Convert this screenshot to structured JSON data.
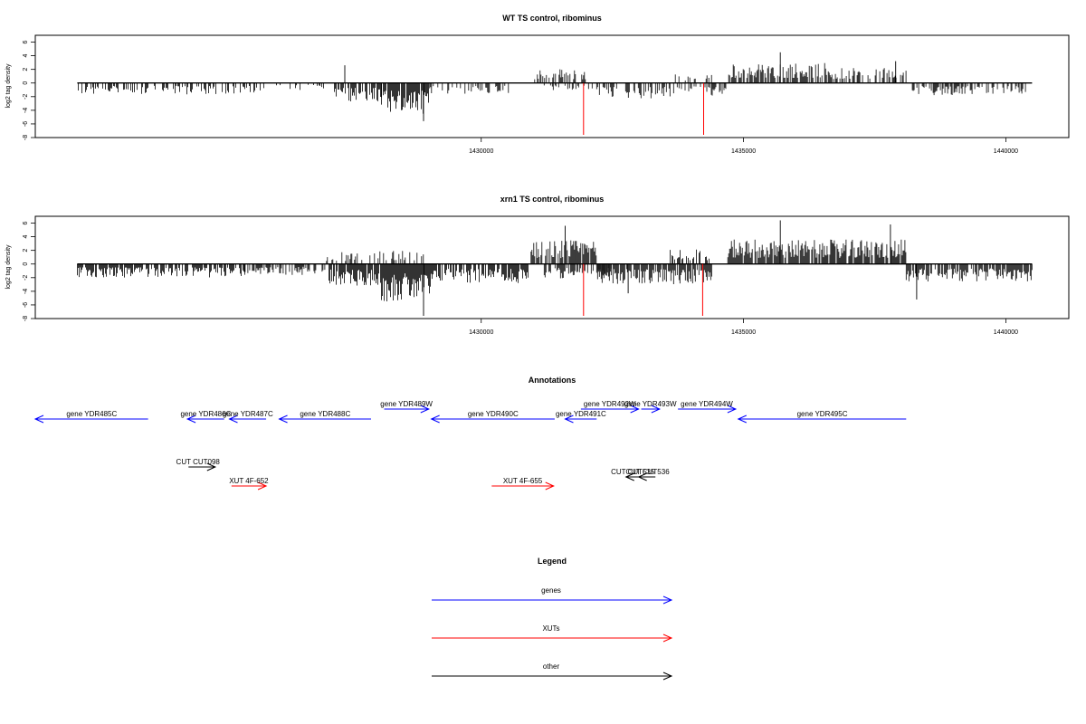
{
  "colors": {
    "gene": "#0000ff",
    "xut": "#ff0000",
    "other": "#000000",
    "bars": "#000000",
    "highlight": "#ff0000"
  },
  "chart_data": [
    {
      "type": "bar",
      "title": "WT TS control, ribominus",
      "ylabel": "log2 tag density",
      "ylim": [
        -8,
        7
      ],
      "yticks": [
        6,
        4,
        2,
        0,
        -2,
        -4,
        -6,
        -8
      ],
      "xlim": [
        1421500,
        1441200
      ],
      "xticks": [
        1430000,
        1435000,
        1440000
      ],
      "xtick_labels": [
        "1430000",
        "1435000",
        "1440000"
      ],
      "grid": false,
      "segments": [
        {
          "from": 1422300,
          "to": 1425700,
          "sign": -1,
          "amp": 1.7,
          "density": 0.45
        },
        {
          "from": 1425700,
          "to": 1427000,
          "sign": -1,
          "amp": 1.1,
          "density": 0.2
        },
        {
          "from": 1427200,
          "to": 1428100,
          "sign": -1,
          "amp": 2.8,
          "density": 0.7
        },
        {
          "from": 1428100,
          "to": 1429000,
          "sign": -1,
          "amp": 4.5,
          "density": 0.9
        },
        {
          "from": 1429000,
          "to": 1430600,
          "sign": -1,
          "amp": 1.6,
          "density": 0.45
        },
        {
          "from": 1430950,
          "to": 1432000,
          "sign": 1,
          "amp": 2.2,
          "density": 0.35
        },
        {
          "from": 1431200,
          "to": 1432200,
          "sign": -1,
          "amp": 1.3,
          "density": 0.3
        },
        {
          "from": 1432200,
          "to": 1433800,
          "sign": -1,
          "amp": 2.3,
          "density": 0.5
        },
        {
          "from": 1433800,
          "to": 1434700,
          "sign": -1,
          "amp": 2.0,
          "density": 0.5
        },
        {
          "from": 1433700,
          "to": 1434400,
          "sign": 1,
          "amp": 1.3,
          "density": 0.3
        },
        {
          "from": 1434700,
          "to": 1436700,
          "sign": 1,
          "amp": 3.0,
          "density": 0.75
        },
        {
          "from": 1436700,
          "to": 1438200,
          "sign": 1,
          "amp": 2.2,
          "density": 0.55
        },
        {
          "from": 1438200,
          "to": 1440400,
          "sign": -1,
          "amp": 1.8,
          "density": 0.45
        }
      ],
      "spikes": [
        {
          "x": 1427400,
          "y": 2.6
        },
        {
          "x": 1428900,
          "y": -5.6
        },
        {
          "x": 1435700,
          "y": 4.5
        },
        {
          "x": 1437900,
          "y": 3.2
        }
      ],
      "highlights": [
        {
          "x": 1431950,
          "y": -7.6
        },
        {
          "x": 1434240,
          "y": -7.6
        }
      ]
    },
    {
      "type": "bar",
      "title": "xrn1 TS control, ribominus",
      "ylabel": "log2 tag density",
      "ylim": [
        -8,
        7
      ],
      "yticks": [
        6,
        4,
        2,
        0,
        -2,
        -4,
        -6,
        -8
      ],
      "xlim": [
        1421500,
        1441200
      ],
      "xticks": [
        1430000,
        1435000,
        1440000
      ],
      "xtick_labels": [
        "1430000",
        "1435000",
        "1440000"
      ],
      "grid": false,
      "segments": [
        {
          "from": 1422300,
          "to": 1425500,
          "sign": -1,
          "amp": 2.0,
          "density": 0.75
        },
        {
          "from": 1425500,
          "to": 1427100,
          "sign": -1,
          "amp": 1.6,
          "density": 0.55
        },
        {
          "from": 1427000,
          "to": 1428000,
          "sign": 1,
          "amp": 1.8,
          "density": 0.3
        },
        {
          "from": 1427100,
          "to": 1428100,
          "sign": -1,
          "amp": 3.2,
          "density": 0.85
        },
        {
          "from": 1428000,
          "to": 1428900,
          "sign": 1,
          "amp": 2.0,
          "density": 0.35
        },
        {
          "from": 1428100,
          "to": 1429100,
          "sign": -1,
          "amp": 5.5,
          "density": 1.0
        },
        {
          "from": 1429100,
          "to": 1430900,
          "sign": -1,
          "amp": 2.8,
          "density": 0.8
        },
        {
          "from": 1430950,
          "to": 1432200,
          "sign": 1,
          "amp": 3.5,
          "density": 0.85
        },
        {
          "from": 1431200,
          "to": 1432500,
          "sign": -1,
          "amp": 2.2,
          "density": 0.55
        },
        {
          "from": 1432200,
          "to": 1434400,
          "sign": -1,
          "amp": 3.0,
          "density": 0.85
        },
        {
          "from": 1433600,
          "to": 1434400,
          "sign": 1,
          "amp": 2.2,
          "density": 0.45
        },
        {
          "from": 1434700,
          "to": 1436300,
          "sign": 1,
          "amp": 3.6,
          "density": 0.9
        },
        {
          "from": 1436300,
          "to": 1438100,
          "sign": 1,
          "amp": 3.6,
          "density": 0.85
        },
        {
          "from": 1438100,
          "to": 1440500,
          "sign": -1,
          "amp": 2.6,
          "density": 0.8
        }
      ],
      "spikes": [
        {
          "x": 1428900,
          "y": -7.6
        },
        {
          "x": 1431600,
          "y": 5.6
        },
        {
          "x": 1435700,
          "y": 6.4
        },
        {
          "x": 1437800,
          "y": 5.8
        },
        {
          "x": 1432800,
          "y": -4.3
        },
        {
          "x": 1438300,
          "y": -5.2
        }
      ],
      "highlights": [
        {
          "x": 1431950,
          "y": -7.6
        },
        {
          "x": 1434220,
          "y": -7.6
        }
      ]
    }
  ],
  "annotations": {
    "title": "Annotations",
    "features": [
      {
        "label": "gene YDR485C",
        "kind": "gene",
        "start": 1421400,
        "end": 1423650,
        "strand": "-",
        "row": 2
      },
      {
        "label": "gene YDR486C",
        "kind": "gene",
        "start": 1424400,
        "end": 1425100,
        "strand": "-",
        "row": 2
      },
      {
        "label": "gene YDR487C",
        "kind": "gene",
        "start": 1425200,
        "end": 1425900,
        "strand": "-",
        "row": 2
      },
      {
        "label": "gene YDR488C",
        "kind": "gene",
        "start": 1426150,
        "end": 1427900,
        "strand": "-",
        "row": 2
      },
      {
        "label": "gene YDR489W",
        "kind": "gene",
        "start": 1428150,
        "end": 1429000,
        "strand": "+",
        "row": 1
      },
      {
        "label": "gene YDR490C",
        "kind": "gene",
        "start": 1429050,
        "end": 1431400,
        "strand": "-",
        "row": 2
      },
      {
        "label": "gene YDR491C",
        "kind": "gene",
        "start": 1431600,
        "end": 1432200,
        "strand": "-",
        "row": 2
      },
      {
        "label": "gene YDR492W",
        "kind": "gene",
        "start": 1431900,
        "end": 1433000,
        "strand": "+",
        "row": 1
      },
      {
        "label": "gene YDR493W",
        "kind": "gene",
        "start": 1433050,
        "end": 1433400,
        "strand": "+",
        "row": 1
      },
      {
        "label": "gene YDR494W",
        "kind": "gene",
        "start": 1433750,
        "end": 1434850,
        "strand": "+",
        "row": 1
      },
      {
        "label": "gene YDR495C",
        "kind": "gene",
        "start": 1434900,
        "end": 1438100,
        "strand": "-",
        "row": 2
      },
      {
        "label": "CUT CUT098",
        "kind": "other",
        "start": 1424420,
        "end": 1424930,
        "strand": "+",
        "row": 3,
        "text_anchor": 1424600
      },
      {
        "label": "CUT CUT535",
        "kind": "other",
        "start": 1432760,
        "end": 1433050,
        "strand": "-",
        "row": 4,
        "text_anchor": 1432890
      },
      {
        "label": "CUT CUT536",
        "kind": "other",
        "start": 1433000,
        "end": 1433320,
        "strand": "-",
        "row": 4,
        "text_anchor": 1433170
      },
      {
        "label": "XUT 4F-652",
        "kind": "xut",
        "start": 1425240,
        "end": 1425900,
        "strand": "+",
        "row": 5
      },
      {
        "label": "XUT 4F-655",
        "kind": "xut",
        "start": 1430200,
        "end": 1431380,
        "strand": "+",
        "row": 5
      }
    ]
  },
  "legend": {
    "title": "Legend",
    "items": [
      {
        "label": "genes",
        "kind": "gene"
      },
      {
        "label": "XUTs",
        "kind": "xut"
      },
      {
        "label": "other",
        "kind": "other"
      }
    ]
  }
}
